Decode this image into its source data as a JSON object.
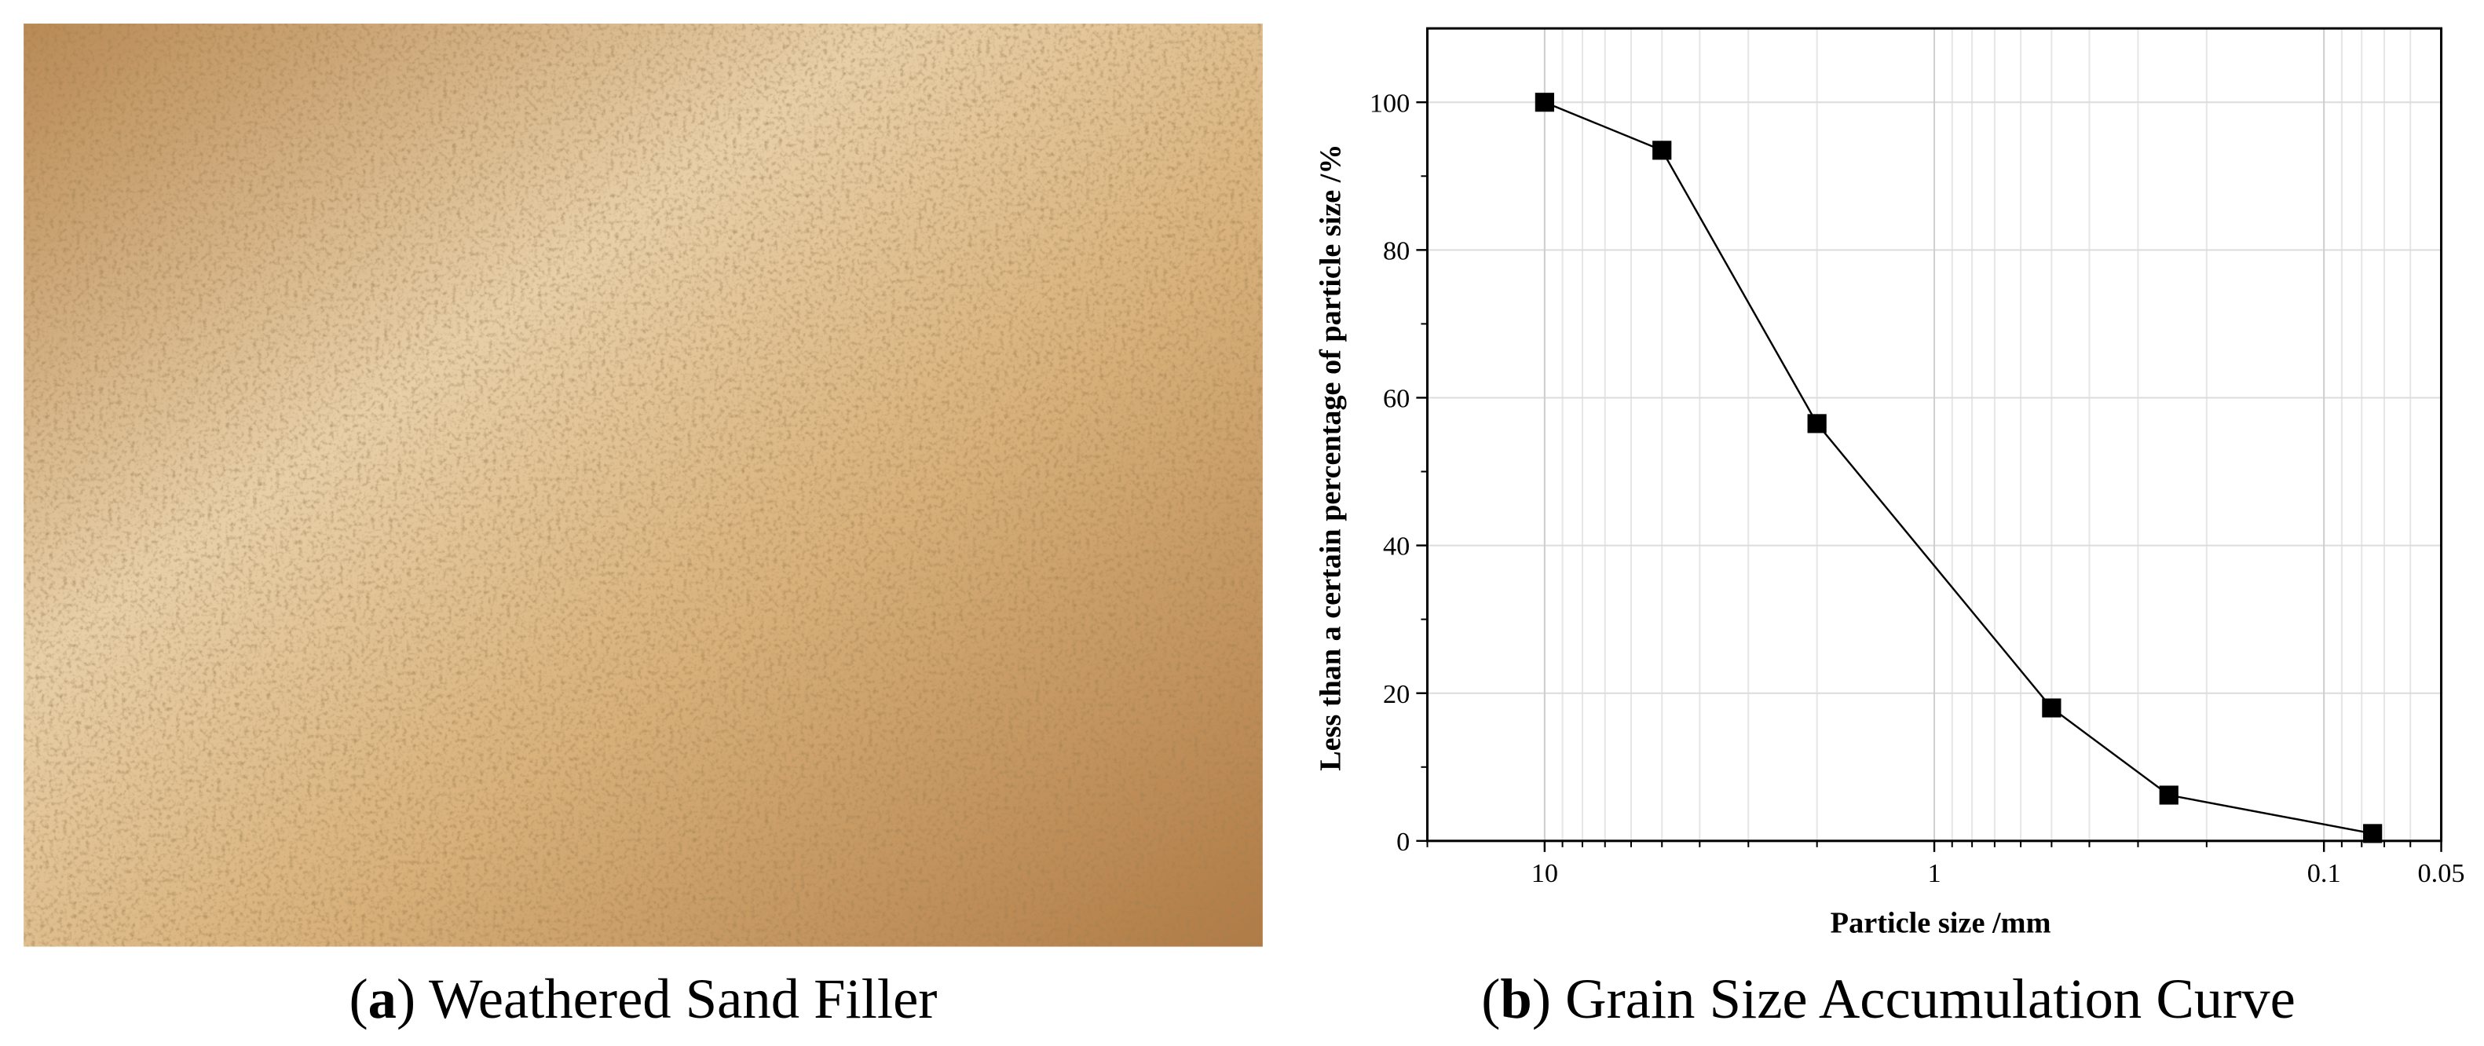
{
  "captions": [
    [
      "(",
      "a",
      ") Weathered Sand Filler"
    ],
    [
      "(",
      "b",
      ") Grain Size Accumulation Curve"
    ]
  ],
  "chart_data": {
    "type": "line",
    "x_label": "Particle size /mm",
    "y_label": "Less than a certain percentage of particle size /%",
    "x": [
      10,
      5,
      2,
      0.5,
      0.25,
      0.075
    ],
    "values": [
      100,
      93.5,
      56.5,
      18,
      6.2,
      1
    ],
    "color": "#000000",
    "marker": "square",
    "xscale": "log",
    "xlim": [
      20,
      0.05
    ],
    "xticks": [
      10,
      1,
      0.1,
      0.05
    ],
    "ylim": [
      0,
      110
    ],
    "yticks": [
      0,
      20,
      40,
      60,
      80,
      100
    ],
    "grid": true
  }
}
